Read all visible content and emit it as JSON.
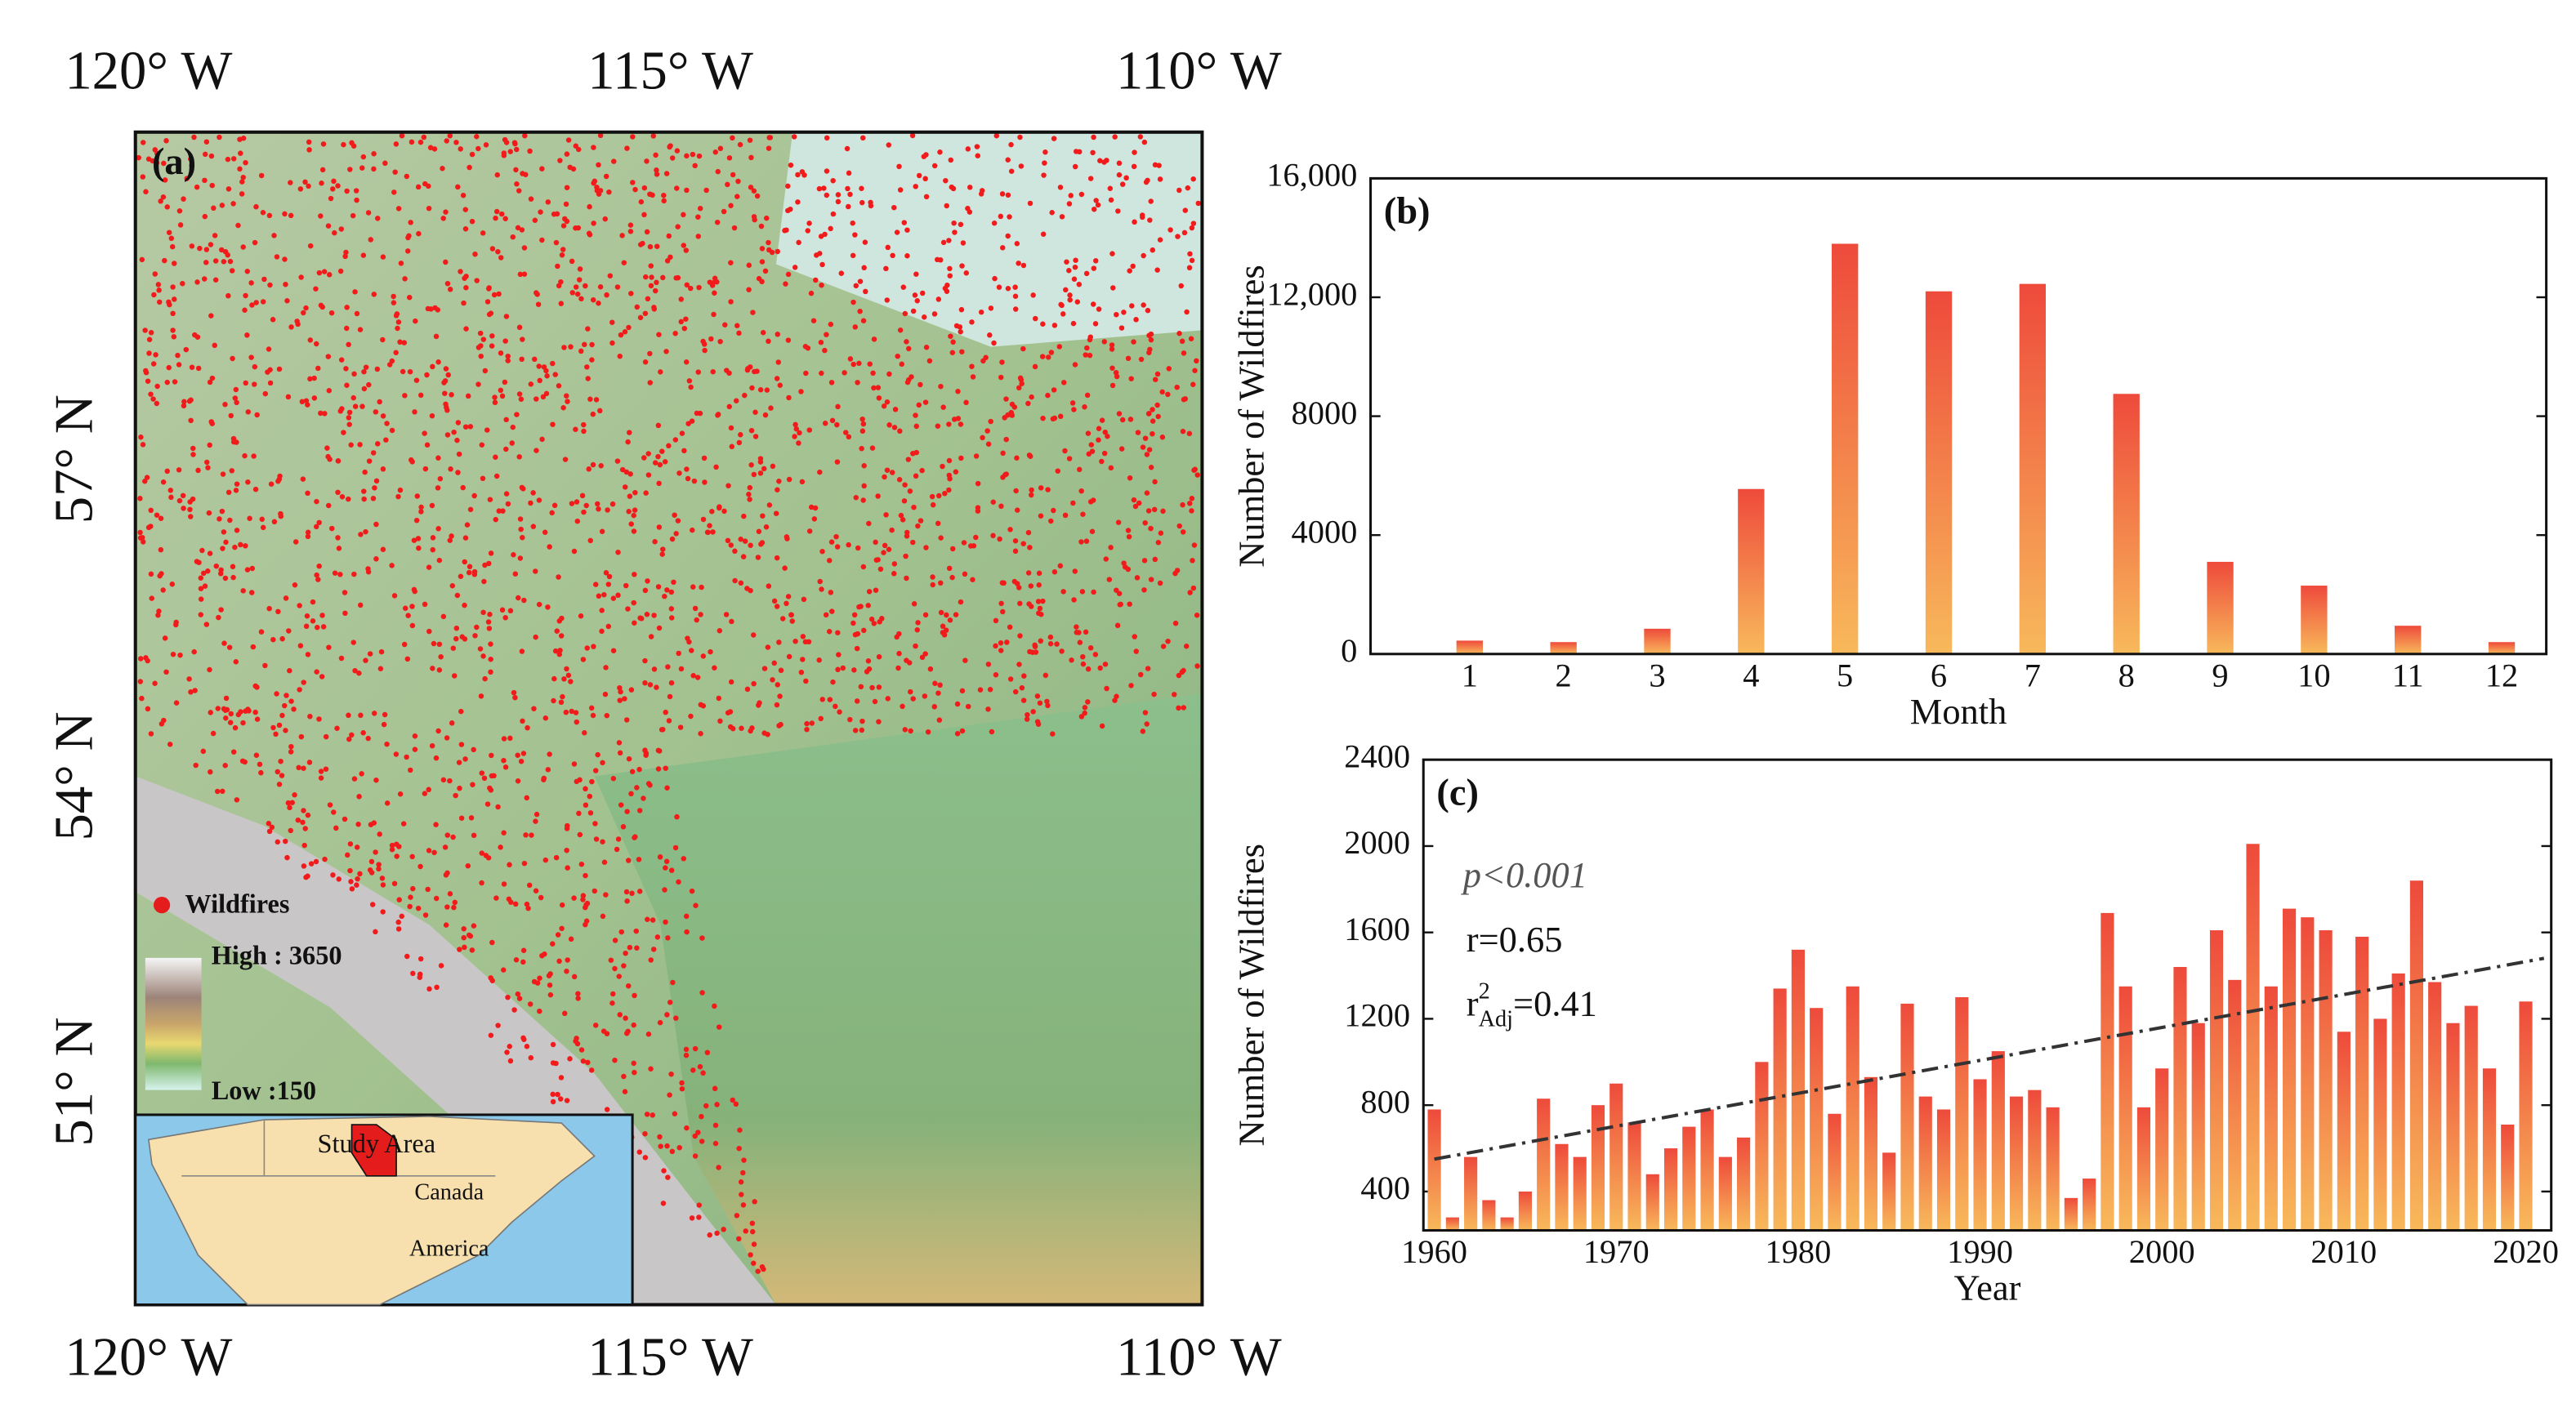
{
  "map": {
    "panel_label": "(a)",
    "lon_top": [
      "120° W",
      "115° W",
      "110° W"
    ],
    "lon_bottom": [
      "120° W",
      "115° W",
      "110° W"
    ],
    "lat": [
      "57° N",
      "54° N",
      "51° N"
    ],
    "legend": {
      "wildfires": "Wildfires",
      "high": "High : 3650",
      "low": "Low :150"
    },
    "inset": {
      "study_area": "Study Area",
      "canada": "Canada",
      "america": "America"
    }
  },
  "chart_data": [
    {
      "type": "bar",
      "panel_label": "(b)",
      "categories": [
        "1",
        "2",
        "3",
        "4",
        "5",
        "6",
        "7",
        "8",
        "9",
        "10",
        "11",
        "12"
      ],
      "values": [
        450,
        400,
        850,
        5550,
        13800,
        12200,
        12450,
        8750,
        3100,
        2300,
        950,
        400
      ],
      "xlabel": "Month",
      "ylabel": "Number of Wildfires",
      "ylim": [
        0,
        16000
      ],
      "yticks": [
        0,
        4000,
        8000,
        {
          "value": 12000,
          "label": "12,000"
        },
        {
          "value": 16000,
          "label": "16,000"
        }
      ],
      "colors": [
        "#ee4a3b",
        "#f8b95b"
      ]
    },
    {
      "type": "bar",
      "panel_label": "(c)",
      "x": [
        1960,
        1961,
        1962,
        1963,
        1964,
        1965,
        1966,
        1967,
        1968,
        1969,
        1970,
        1971,
        1972,
        1973,
        1974,
        1975,
        1976,
        1977,
        1978,
        1979,
        1980,
        1981,
        1982,
        1983,
        1984,
        1985,
        1986,
        1987,
        1988,
        1989,
        1990,
        1991,
        1992,
        1993,
        1994,
        1995,
        1996,
        1997,
        1998,
        1999,
        2000,
        2001,
        2002,
        2003,
        2004,
        2005,
        2006,
        2007,
        2008,
        2009,
        2010,
        2011,
        2012,
        2013,
        2014,
        2015,
        2016,
        2017,
        2018,
        2019,
        2020
      ],
      "values": [
        780,
        280,
        560,
        360,
        280,
        400,
        830,
        620,
        560,
        800,
        900,
        720,
        480,
        600,
        700,
        780,
        560,
        650,
        1000,
        1340,
        1520,
        1250,
        760,
        1350,
        930,
        580,
        1270,
        840,
        780,
        1300,
        920,
        1050,
        840,
        870,
        790,
        370,
        460,
        1690,
        1350,
        790,
        970,
        1440,
        1180,
        1610,
        1380,
        2010,
        1350,
        1710,
        1670,
        1610,
        1140,
        1580,
        1200,
        1410,
        1840,
        1370,
        1180,
        1260,
        970,
        710,
        1280
      ],
      "xlabel": "Year",
      "ylabel": "Number of Wildfires",
      "xlim": [
        1959.4,
        2021.4
      ],
      "xticks": [
        1960,
        1970,
        1980,
        1990,
        2000,
        2010,
        2020
      ],
      "ylim": [
        220,
        2400
      ],
      "yticks": [
        400,
        800,
        1200,
        1600,
        2000,
        2400
      ],
      "colors": [
        "#ee4a3b",
        "#f8b95b"
      ],
      "trend": {
        "x": [
          1960,
          2021
        ],
        "values": [
          550,
          1480
        ],
        "color": "#333333"
      },
      "annotations": {
        "p": "p<0.001",
        "r": "r=0.65",
        "r2": {
          "base": "r",
          "sup": "2",
          "sub": "Adj",
          "value": "=0.41"
        }
      }
    }
  ]
}
